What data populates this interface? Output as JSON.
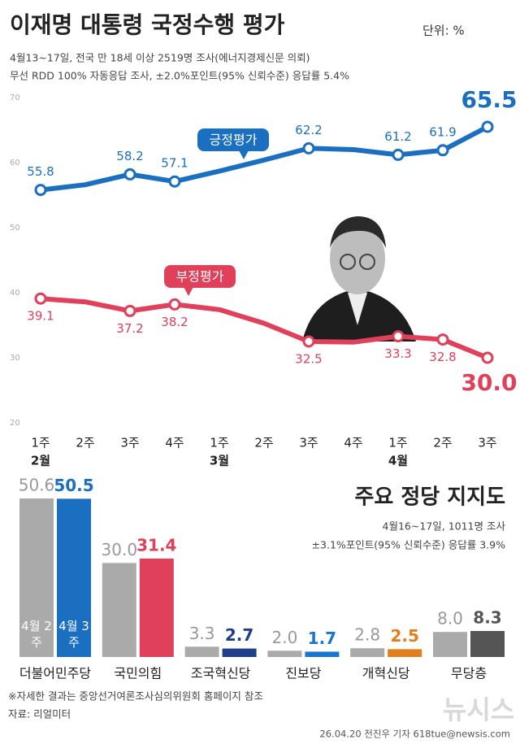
{
  "header": {
    "title": "이재명 대통령 국정수행 평가",
    "unit": "단위: %",
    "notes": [
      "4월13~17일, 전국 만 18세 이상 2519명 조사(에너지경제신문 의뢰)",
      "무선 RDD 100% 자동응답 조사, ±2.0%포인트(95% 신뢰수준) 응답률 5.4%"
    ]
  },
  "chart_data": [
    {
      "type": "line",
      "categories": [
        "1주",
        "2주",
        "3주",
        "4주",
        "1주",
        "2주",
        "3주",
        "4주",
        "1주",
        "2주",
        "3주"
      ],
      "months": [
        "2월",
        null,
        null,
        null,
        "3월",
        null,
        null,
        null,
        "4월",
        null,
        null
      ],
      "series": [
        {
          "name": "긍정평가",
          "color": "#1a6fc0",
          "values": [
            55.8,
            56.6,
            58.2,
            57.1,
            58.7,
            60.4,
            62.2,
            62.0,
            61.2,
            61.9,
            65.5
          ],
          "value_labels": [
            "55.8",
            null,
            "58.2",
            "57.1",
            null,
            null,
            "62.2",
            null,
            "61.2",
            "61.9",
            "65.5"
          ]
        },
        {
          "name": "부정평가",
          "color": "#e0405a",
          "values": [
            39.1,
            38.6,
            37.2,
            38.2,
            37.4,
            35.3,
            32.5,
            32.4,
            33.3,
            32.8,
            30.0
          ],
          "value_labels": [
            "39.1",
            null,
            "37.2",
            "38.2",
            null,
            null,
            "32.5",
            null,
            "33.3",
            "32.8",
            "30.0"
          ]
        }
      ],
      "ylim": [
        20,
        70
      ],
      "yticks": [
        20,
        30,
        40,
        50,
        60,
        70
      ],
      "grid": false
    },
    {
      "type": "bar",
      "title": "주요 정당 지지도",
      "notes": [
        "4월16~17일, 1011명 조사",
        "±3.1%포인트(95% 신뢰수준) 응답률 3.9%"
      ],
      "categories": [
        "더불어민주당",
        "국민의힘",
        "조국혁신당",
        "진보당",
        "개혁신당",
        "무당층"
      ],
      "series": [
        {
          "name": "4월 2주",
          "colors": [
            "#aaaaaa",
            "#aaaaaa",
            "#aaaaaa",
            "#aaaaaa",
            "#aaaaaa",
            "#aaaaaa"
          ],
          "label_color": "#999999",
          "values": [
            50.6,
            30.0,
            3.3,
            2.0,
            2.8,
            8.0
          ],
          "value_labels": [
            "50.6",
            "30.0",
            "3.3",
            "2.0",
            "2.8",
            "8.0"
          ]
        },
        {
          "name": "4월 3주",
          "colors": [
            "#1a6fc0",
            "#e0405a",
            "#1f3f8a",
            "#1a76cc",
            "#e07f1e",
            "#555555"
          ],
          "values": [
            50.5,
            31.4,
            2.7,
            1.7,
            2.5,
            8.3
          ],
          "value_labels": [
            "50.5",
            "31.4",
            "2.7",
            "1.7",
            "2.5",
            "8.3"
          ]
        }
      ],
      "ylim": [
        0,
        55
      ]
    }
  ],
  "footer": {
    "note": "※자세한 결과는 중앙선거여론조사심의위원회 홈페이지 참조",
    "source": "자료: 리얼미터",
    "credit": "26.04.20 전진우 기자 618tue@newsis.com",
    "logo": "뉴시스"
  }
}
